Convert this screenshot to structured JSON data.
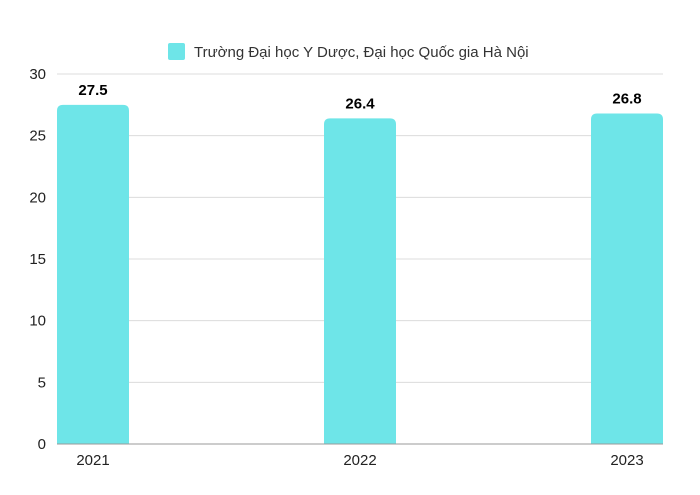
{
  "chart_data": {
    "type": "bar",
    "categories": [
      "2021",
      "2022",
      "2023"
    ],
    "series": [
      {
        "name": "Trường Đại học Y Dược, Đại học Quốc gia Hà Nội",
        "values": [
          27.5,
          26.4,
          26.8
        ],
        "color": "#6ee5e8"
      }
    ],
    "data_labels": [
      "27.5",
      "26.4",
      "26.8"
    ],
    "yticks": [
      "0",
      "5",
      "10",
      "15",
      "20",
      "25",
      "30"
    ],
    "ylim": [
      0,
      30
    ],
    "grid": true,
    "legend_position": "top-center"
  }
}
